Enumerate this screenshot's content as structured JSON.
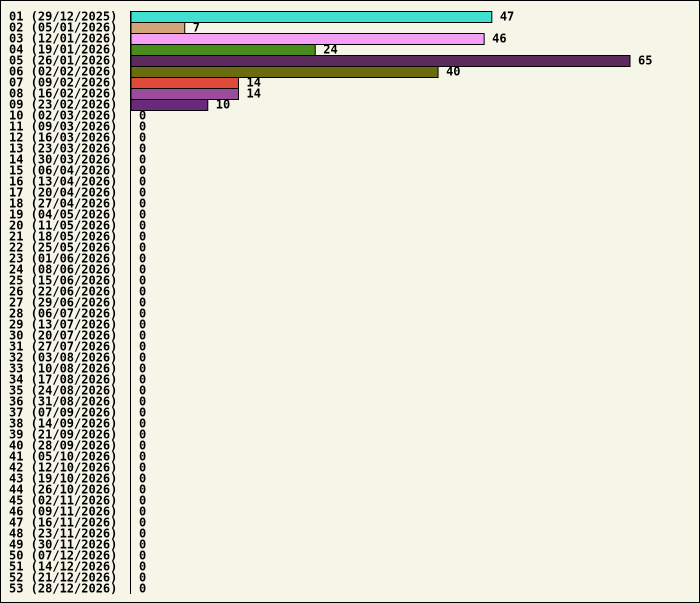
{
  "chart_data": {
    "type": "hbar",
    "categories": [
      "01 (29/12/2025)",
      "02 (05/01/2026)",
      "03 (12/01/2026)",
      "04 (19/01/2026)",
      "05 (26/01/2026)",
      "06 (02/02/2026)",
      "07 (09/02/2026)",
      "08 (16/02/2026)",
      "09 (23/02/2026)",
      "10 (02/03/2026)",
      "11 (09/03/2026)",
      "12 (16/03/2026)",
      "13 (23/03/2026)",
      "14 (30/03/2026)",
      "15 (06/04/2026)",
      "16 (13/04/2026)",
      "17 (20/04/2026)",
      "18 (27/04/2026)",
      "19 (04/05/2026)",
      "20 (11/05/2026)",
      "21 (18/05/2026)",
      "22 (25/05/2026)",
      "23 (01/06/2026)",
      "24 (08/06/2026)",
      "25 (15/06/2026)",
      "26 (22/06/2026)",
      "27 (29/06/2026)",
      "28 (06/07/2026)",
      "29 (13/07/2026)",
      "30 (20/07/2026)",
      "31 (27/07/2026)",
      "32 (03/08/2026)",
      "33 (10/08/2026)",
      "34 (17/08/2026)",
      "35 (24/08/2026)",
      "36 (31/08/2026)",
      "37 (07/09/2026)",
      "38 (14/09/2026)",
      "39 (21/09/2026)",
      "40 (28/09/2026)",
      "41 (05/10/2026)",
      "42 (12/10/2026)",
      "43 (19/10/2026)",
      "44 (26/10/2026)",
      "45 (02/11/2026)",
      "46 (09/11/2026)",
      "47 (16/11/2026)",
      "48 (23/11/2026)",
      "49 (30/11/2026)",
      "50 (07/12/2026)",
      "51 (14/12/2026)",
      "52 (21/12/2026)",
      "53 (28/12/2026)"
    ],
    "values": [
      47,
      7,
      46,
      24,
      65,
      40,
      14,
      14,
      10,
      0,
      0,
      0,
      0,
      0,
      0,
      0,
      0,
      0,
      0,
      0,
      0,
      0,
      0,
      0,
      0,
      0,
      0,
      0,
      0,
      0,
      0,
      0,
      0,
      0,
      0,
      0,
      0,
      0,
      0,
      0,
      0,
      0,
      0,
      0,
      0,
      0,
      0,
      0,
      0,
      0,
      0,
      0,
      0
    ],
    "colors": [
      "#40e0d0",
      "#d2a679",
      "#f4a0f4",
      "#4a8c1c",
      "#5c2a5c",
      "#6b6b10",
      "#e04a3a",
      "#9c4c9c",
      "#6a2a7a"
    ]
  }
}
